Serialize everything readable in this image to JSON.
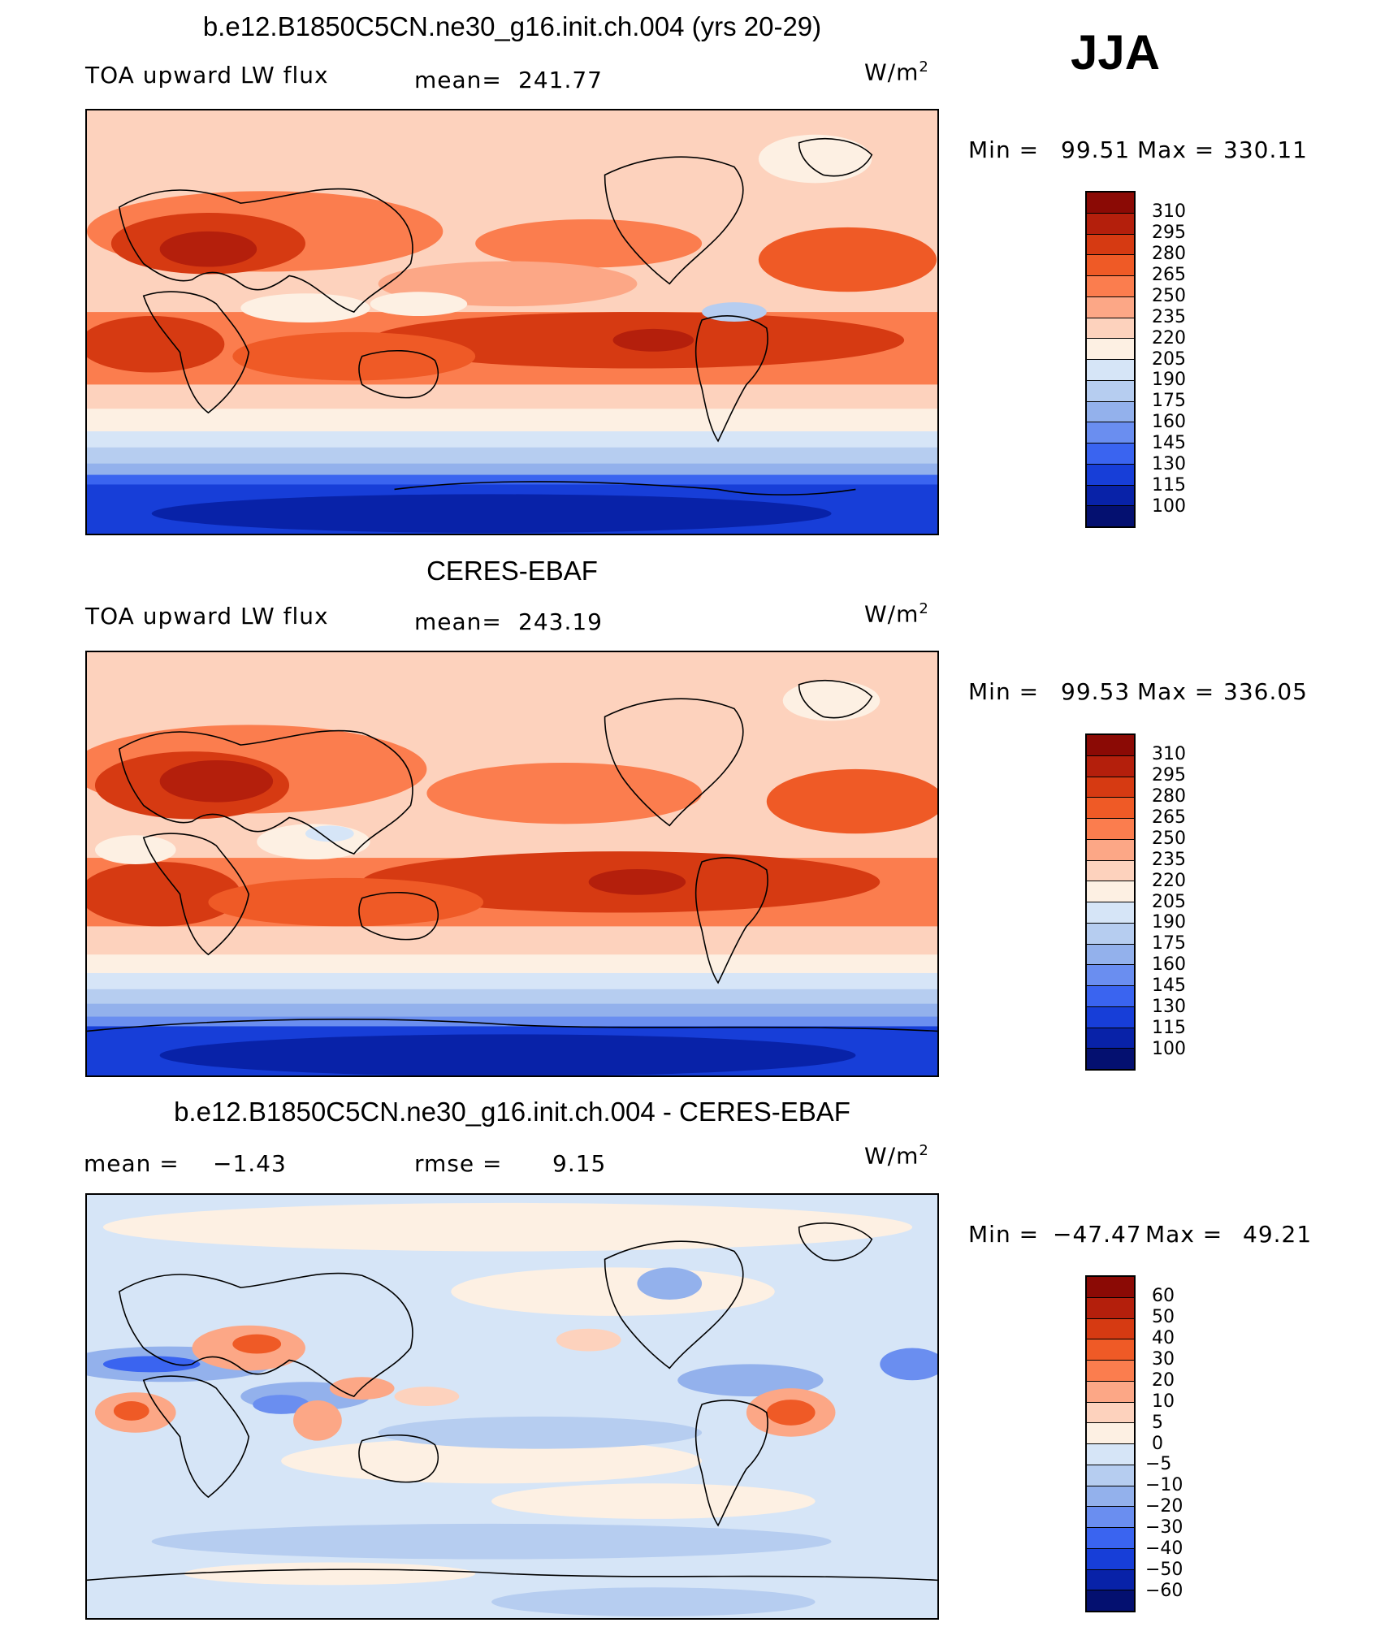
{
  "season_label": "JJA",
  "legend_ramps": {
    "abs": [
      "#8b0a05",
      "#b41f0c",
      "#d63a12",
      "#ef5a26",
      "#fb7d4e",
      "#fca786",
      "#fdd2bd",
      "#fdf0e3",
      "#d6e5f7",
      "#b6cdf0",
      "#93b1ec",
      "#6a8ef0",
      "#3a64f0",
      "#173ed8",
      "#0822a8",
      "#041070"
    ],
    "diff": [
      "#8b0a05",
      "#b41f0c",
      "#d63a12",
      "#ef5a26",
      "#fb7d4e",
      "#fca786",
      "#fdd2bd",
      "#fdf0e3",
      "#d6e5f7",
      "#b6cdf0",
      "#93b1ec",
      "#6a8ef0",
      "#3a64f0",
      "#173ed8",
      "#0822a8",
      "#041070"
    ]
  },
  "chart_data": [
    {
      "type": "heatmap",
      "title": "b.e12.B1850C5CN.ne30_g16.init.ch.004 (yrs 20-29)",
      "variable": "TOA upward LW flux",
      "mean_label": "mean=",
      "mean": "241.77",
      "units_base": "W/m",
      "units_exp": "2",
      "min_label": "Min =",
      "min": "99.51",
      "max_label": "Max =",
      "max": "330.11",
      "levels": [
        "310",
        "295",
        "280",
        "265",
        "250",
        "235",
        "220",
        "205",
        "190",
        "175",
        "160",
        "145",
        "130",
        "115",
        "100"
      ]
    },
    {
      "type": "heatmap",
      "title": "CERES-EBAF",
      "variable": "TOA upward LW flux",
      "mean_label": "mean=",
      "mean": "243.19",
      "units_base": "W/m",
      "units_exp": "2",
      "min_label": "Min =",
      "min": "99.53",
      "max_label": "Max =",
      "max": "336.05",
      "levels": [
        "310",
        "295",
        "280",
        "265",
        "250",
        "235",
        "220",
        "205",
        "190",
        "175",
        "160",
        "145",
        "130",
        "115",
        "100"
      ]
    },
    {
      "type": "heatmap",
      "title": "b.e12.B1850C5CN.ne30_g16.init.ch.004 - CERES-EBAF",
      "mean_label": "mean =",
      "mean": "−1.43",
      "rmse_label": "rmse =",
      "rmse": "9.15",
      "units_base": "W/m",
      "units_exp": "2",
      "min_label": "Min =",
      "min": "−47.47",
      "max_label": "Max =",
      "max": "49.21",
      "levels": [
        "60",
        "50",
        "40",
        "30",
        "20",
        "10",
        "5",
        "0",
        "−5",
        "−10",
        "−20",
        "−30",
        "−40",
        "−50",
        "−60"
      ]
    }
  ]
}
